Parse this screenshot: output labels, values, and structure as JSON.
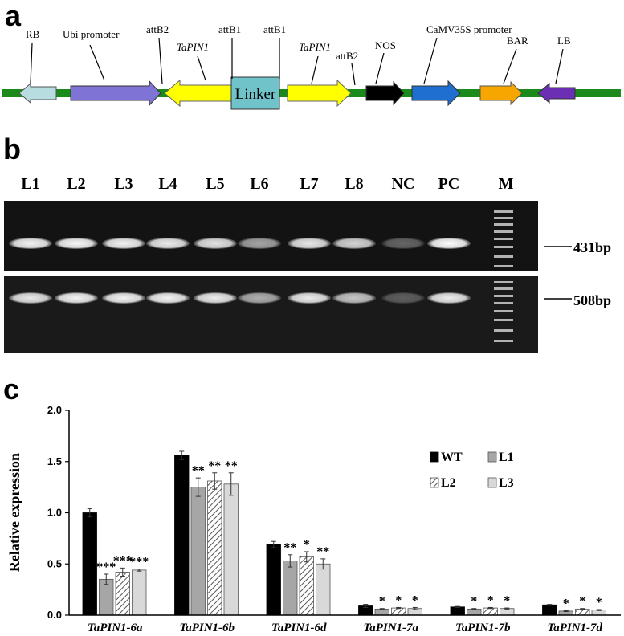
{
  "panel_labels": {
    "a": "a",
    "b": "b",
    "c": "c"
  },
  "construct": {
    "labels": {
      "rb": "RB",
      "ubi": "Ubi promoter",
      "attb2_left": "attB2",
      "tapin1_left": "TaPIN1",
      "attb1_left": "attB1",
      "attb1_right": "attB1",
      "tapin1_right": "TaPIN1",
      "attb2_right": "attB2",
      "nos": "NOS",
      "camv": "CaMV35S promoter",
      "bar": "BAR",
      "lb": "LB",
      "linker": "Linker"
    },
    "colors": {
      "backbone": "#1a8a1a",
      "rb": "#b8dde0",
      "ubi": "#7f73d6",
      "tapin1": "#ffff00",
      "linker": "#6fc3c9",
      "nos": "#000000",
      "camv": "#1f6fd0",
      "bar": "#f7a600",
      "lb": "#6b2fb3"
    }
  },
  "gel": {
    "lanes": [
      "L1",
      "L2",
      "L3",
      "L4",
      "L5",
      "L6",
      "L7",
      "L8",
      "NC",
      "PC",
      "M"
    ],
    "band_sizes": [
      "431bp",
      "508bp"
    ],
    "intensity_top": [
      0.95,
      0.97,
      0.95,
      0.92,
      0.88,
      0.62,
      0.9,
      0.82,
      0.35,
      1.0
    ],
    "intensity_bottom": [
      0.9,
      0.95,
      0.95,
      0.95,
      0.92,
      0.65,
      0.92,
      0.75,
      0.3,
      0.92
    ]
  },
  "chart_data": {
    "type": "bar",
    "ylabel": "Relative expression",
    "ylim": [
      0,
      2.0
    ],
    "yticks": [
      "0.0",
      "0.5",
      "1.0",
      "1.5",
      "2.0"
    ],
    "categories": [
      "TaPIN1-6a",
      "TaPIN1-6b",
      "TaPIN1-6d",
      "TaPIN1-7a",
      "TaPIN1-7b",
      "TaPIN1-7d"
    ],
    "series": [
      {
        "name": "WT",
        "values": [
          1.0,
          1.56,
          0.69,
          0.09,
          0.08,
          0.1
        ],
        "errors": [
          0.04,
          0.04,
          0.03,
          0.015,
          0.005,
          0.005
        ]
      },
      {
        "name": "L1",
        "values": [
          0.35,
          1.25,
          0.53,
          0.06,
          0.06,
          0.04
        ],
        "errors": [
          0.05,
          0.09,
          0.06,
          0.005,
          0.005,
          0.005
        ]
      },
      {
        "name": "L2",
        "values": [
          0.42,
          1.31,
          0.57,
          0.07,
          0.07,
          0.06
        ],
        "errors": [
          0.04,
          0.08,
          0.05,
          0.005,
          0.005,
          0.005
        ]
      },
      {
        "name": "L3",
        "values": [
          0.44,
          1.28,
          0.5,
          0.065,
          0.065,
          0.05
        ],
        "errors": [
          0.01,
          0.11,
          0.05,
          0.01,
          0.005,
          0.005
        ]
      }
    ],
    "significance": [
      [
        "",
        "***",
        "***",
        "***"
      ],
      [
        "",
        "**",
        "**",
        "**"
      ],
      [
        "",
        "**",
        "*",
        "**"
      ],
      [
        "",
        "*",
        "*",
        "*"
      ],
      [
        "",
        "*",
        "*",
        "*"
      ],
      [
        "",
        "*",
        "*",
        "*"
      ]
    ],
    "legend_position": "top-right",
    "grid": false,
    "colors": [
      "#000000",
      "#a6a6a6",
      "hatched",
      "#d9d9d9"
    ]
  }
}
